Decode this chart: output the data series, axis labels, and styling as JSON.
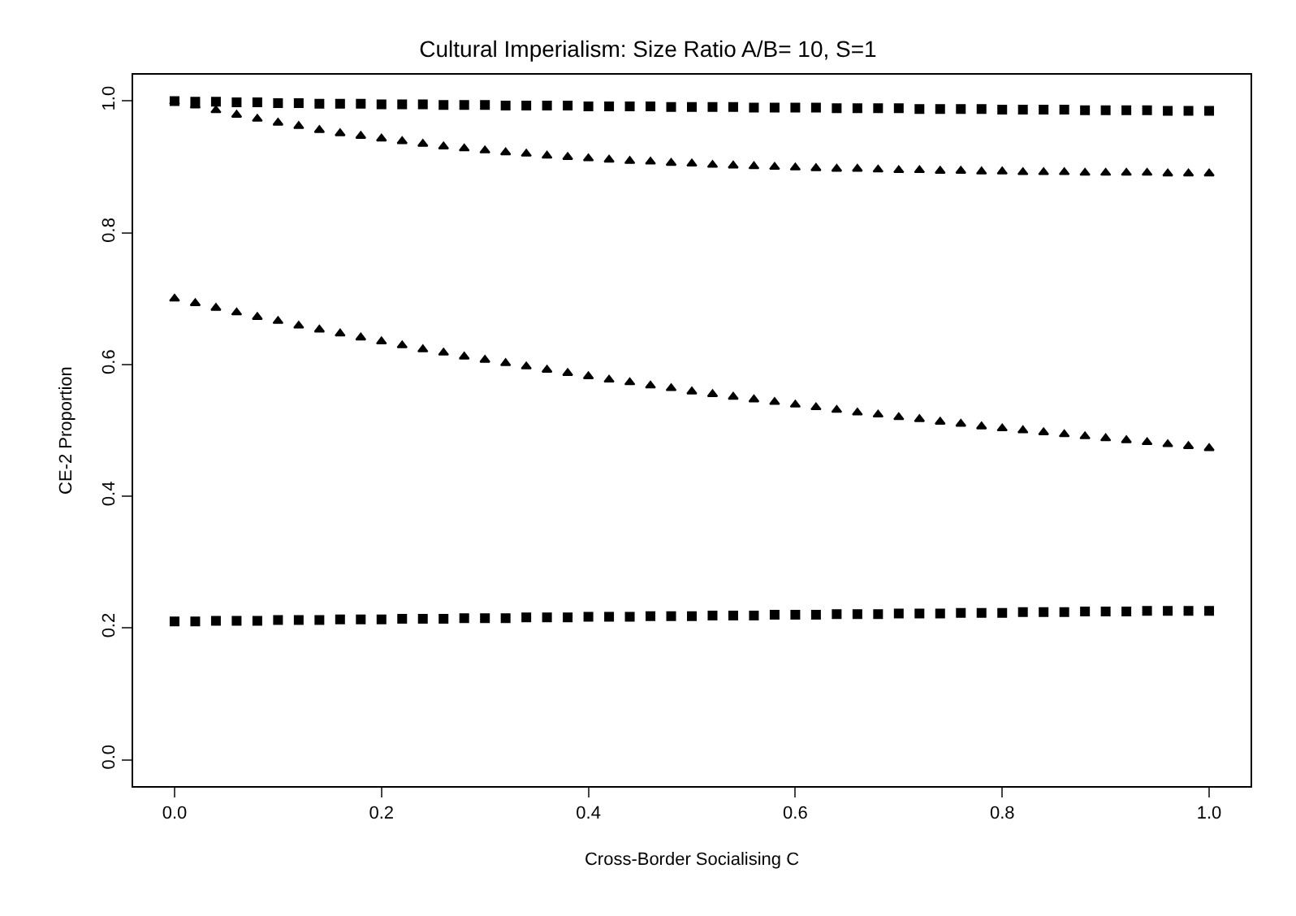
{
  "chart_data": {
    "type": "scatter",
    "title": "Cultural Imperialism: Size Ratio A/B= 10, S=1",
    "xlabel": "Cross-Border Socialising C",
    "ylabel": "CE-2 Proportion",
    "x": [
      0,
      0.02,
      0.04,
      0.06,
      0.08,
      0.1,
      0.12,
      0.14,
      0.16,
      0.18,
      0.2,
      0.22,
      0.24,
      0.26,
      0.28,
      0.3,
      0.32,
      0.34,
      0.36,
      0.38,
      0.4,
      0.42,
      0.44,
      0.46,
      0.48,
      0.5,
      0.52,
      0.54,
      0.56,
      0.58,
      0.6,
      0.62,
      0.64,
      0.66,
      0.68,
      0.7,
      0.72,
      0.74,
      0.76,
      0.78,
      0.8,
      0.82,
      0.84,
      0.86,
      0.88,
      0.9,
      0.92,
      0.94,
      0.96,
      0.98,
      1
    ],
    "series": [
      {
        "color": "#000000",
        "marker": "square",
        "values": [
          1.0,
          0.999,
          0.999,
          0.998,
          0.998,
          0.997,
          0.997,
          0.996,
          0.996,
          0.996,
          0.995,
          0.995,
          0.995,
          0.994,
          0.994,
          0.994,
          0.993,
          0.993,
          0.993,
          0.993,
          0.992,
          0.992,
          0.992,
          0.992,
          0.991,
          0.991,
          0.991,
          0.991,
          0.99,
          0.99,
          0.99,
          0.99,
          0.989,
          0.989,
          0.989,
          0.989,
          0.988,
          0.988,
          0.988,
          0.988,
          0.987,
          0.987,
          0.987,
          0.987,
          0.986,
          0.986,
          0.986,
          0.986,
          0.985,
          0.985,
          0.985
        ]
      },
      {
        "color": "#000000",
        "marker": "triangle",
        "values": [
          0.999,
          0.993,
          0.986,
          0.979,
          0.973,
          0.967,
          0.962,
          0.956,
          0.951,
          0.947,
          0.943,
          0.939,
          0.935,
          0.931,
          0.928,
          0.925,
          0.922,
          0.92,
          0.917,
          0.915,
          0.913,
          0.911,
          0.909,
          0.908,
          0.906,
          0.905,
          0.903,
          0.902,
          0.901,
          0.9,
          0.899,
          0.898,
          0.897,
          0.897,
          0.896,
          0.895,
          0.895,
          0.894,
          0.894,
          0.893,
          0.893,
          0.892,
          0.892,
          0.892,
          0.891,
          0.891,
          0.891,
          0.891,
          0.89,
          0.89,
          0.89
        ]
      },
      {
        "color": "#000000",
        "marker": "triangle",
        "values": [
          0.7,
          0.693,
          0.686,
          0.679,
          0.672,
          0.666,
          0.659,
          0.653,
          0.647,
          0.641,
          0.635,
          0.629,
          0.623,
          0.618,
          0.612,
          0.607,
          0.602,
          0.597,
          0.592,
          0.587,
          0.582,
          0.577,
          0.573,
          0.568,
          0.564,
          0.559,
          0.555,
          0.551,
          0.547,
          0.543,
          0.539,
          0.535,
          0.531,
          0.527,
          0.524,
          0.52,
          0.517,
          0.513,
          0.51,
          0.506,
          0.503,
          0.5,
          0.497,
          0.494,
          0.491,
          0.488,
          0.485,
          0.482,
          0.479,
          0.476,
          0.473
        ]
      },
      {
        "color": "#000000",
        "marker": "square",
        "values": [
          0.21,
          0.21,
          0.211,
          0.211,
          0.211,
          0.212,
          0.212,
          0.212,
          0.213,
          0.213,
          0.213,
          0.214,
          0.214,
          0.214,
          0.215,
          0.215,
          0.215,
          0.216,
          0.216,
          0.216,
          0.217,
          0.217,
          0.217,
          0.218,
          0.218,
          0.218,
          0.219,
          0.219,
          0.219,
          0.22,
          0.22,
          0.22,
          0.221,
          0.221,
          0.221,
          0.222,
          0.222,
          0.222,
          0.223,
          0.223,
          0.223,
          0.224,
          0.224,
          0.224,
          0.225,
          0.225,
          0.225,
          0.226,
          0.226,
          0.226,
          0.226
        ]
      }
    ],
    "xlim": [
      -0.04,
      1.04
    ],
    "ylim": [
      -0.04,
      1.04
    ],
    "xticks": [
      {
        "value": 0,
        "label": "0.0"
      },
      0.2,
      0.4,
      0.6,
      0.8,
      {
        "value": 1,
        "label": "1.0"
      }
    ],
    "yticks": [
      {
        "value": 0,
        "label": "0.0"
      },
      0.2,
      0.4,
      0.6,
      0.8,
      {
        "value": 1,
        "label": "1.0"
      }
    ],
    "grid": false
  }
}
